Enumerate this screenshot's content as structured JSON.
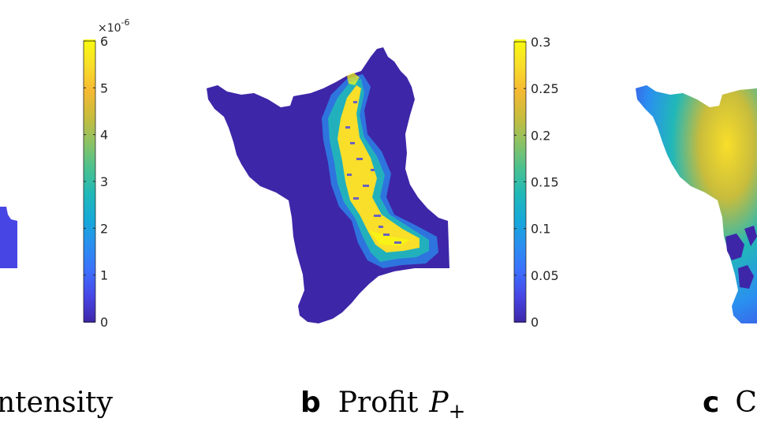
{
  "colors": {
    "parula": [
      "#3e26a8",
      "#4745e4",
      "#3c6ffd",
      "#2a8ff0",
      "#16a9d8",
      "#21b8b8",
      "#4ac18f",
      "#8cc264",
      "#c8bc3c",
      "#f5b933",
      "#f9de2a",
      "#f9fb0e"
    ],
    "background": "#ffffff"
  },
  "chart_data": [
    {
      "panel": "a",
      "type": "heatmap",
      "caption": {
        "letter": "",
        "text": "ntensity"
      },
      "colorbar": {
        "ticks": [
          "0",
          "1",
          "2",
          "3",
          "4",
          "5",
          "6"
        ],
        "range": [
          0,
          6
        ],
        "exponent_label": "×10",
        "exponent_value": "-6"
      }
    },
    {
      "panel": "b",
      "type": "heatmap",
      "caption": {
        "letter": "b",
        "text": "Profit",
        "math": "P",
        "subscript": "+"
      },
      "colorbar": {
        "ticks": [
          "0",
          "0.05",
          "0.1",
          "0.15",
          "0.2",
          "0.25",
          "0.3"
        ],
        "range": [
          0,
          0.3
        ]
      }
    },
    {
      "panel": "c",
      "type": "heatmap",
      "caption": {
        "letter": "c",
        "text": "C"
      }
    }
  ]
}
